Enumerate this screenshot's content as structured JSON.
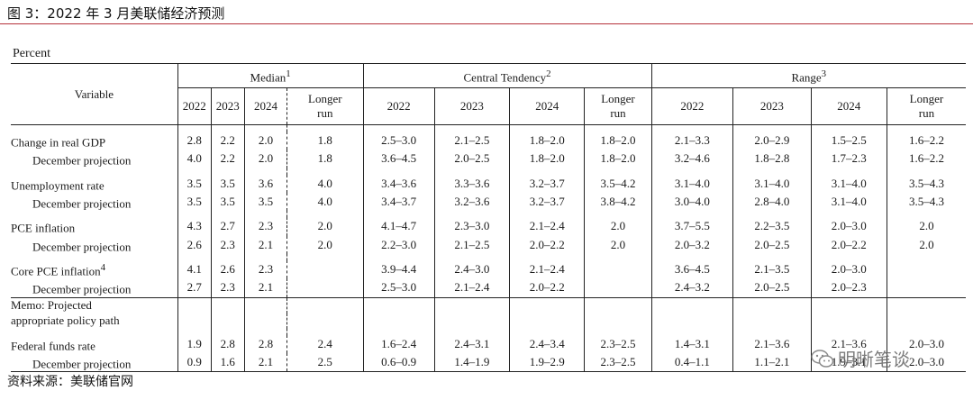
{
  "figure": {
    "title": "图 3：2022 年 3 月美联储经济预测",
    "source": "资料来源：美联储官网",
    "watermark": "明晰笔谈"
  },
  "table": {
    "unit": "Percent",
    "variable_header": "Variable",
    "groups": {
      "median": {
        "label": "Median",
        "sup": "1"
      },
      "central": {
        "label": "Central Tendency",
        "sup": "2"
      },
      "range": {
        "label": "Range",
        "sup": "3"
      }
    },
    "years": {
      "y2022": "2022",
      "y2023": "2023",
      "y2024": "2024",
      "longer_1": "Longer",
      "longer_2": "run"
    },
    "rows": [
      {
        "label": "Change in real GDP",
        "sup": "",
        "m": [
          "2.8",
          "2.2",
          "2.0",
          "1.8"
        ],
        "ct": [
          "2.5–3.0",
          "2.1–2.5",
          "1.8–2.0",
          "1.8–2.0"
        ],
        "rg": [
          "2.1–3.3",
          "2.0–2.9",
          "1.5–2.5",
          "1.6–2.2"
        ]
      },
      {
        "label": "December projection",
        "sup": "",
        "m": [
          "4.0",
          "2.2",
          "2.0",
          "1.8"
        ],
        "ct": [
          "3.6–4.5",
          "2.0–2.5",
          "1.8–2.0",
          "1.8–2.0"
        ],
        "rg": [
          "3.2–4.6",
          "1.8–2.8",
          "1.7–2.3",
          "1.6–2.2"
        ]
      },
      {
        "label": "Unemployment rate",
        "sup": "",
        "m": [
          "3.5",
          "3.5",
          "3.6",
          "4.0"
        ],
        "ct": [
          "3.4–3.6",
          "3.3–3.6",
          "3.2–3.7",
          "3.5–4.2"
        ],
        "rg": [
          "3.1–4.0",
          "3.1–4.0",
          "3.1–4.0",
          "3.5–4.3"
        ]
      },
      {
        "label": "December projection",
        "sup": "",
        "m": [
          "3.5",
          "3.5",
          "3.5",
          "4.0"
        ],
        "ct": [
          "3.4–3.7",
          "3.2–3.6",
          "3.2–3.7",
          "3.8–4.2"
        ],
        "rg": [
          "3.0–4.0",
          "2.8–4.0",
          "3.1–4.0",
          "3.5–4.3"
        ]
      },
      {
        "label": "PCE inflation",
        "sup": "",
        "m": [
          "4.3",
          "2.7",
          "2.3",
          "2.0"
        ],
        "ct": [
          "4.1–4.7",
          "2.3–3.0",
          "2.1–2.4",
          "2.0"
        ],
        "rg": [
          "3.7–5.5",
          "2.2–3.5",
          "2.0–3.0",
          "2.0"
        ]
      },
      {
        "label": "December projection",
        "sup": "",
        "m": [
          "2.6",
          "2.3",
          "2.1",
          "2.0"
        ],
        "ct": [
          "2.2–3.0",
          "2.1–2.5",
          "2.0–2.2",
          "2.0"
        ],
        "rg": [
          "2.0–3.2",
          "2.0–2.5",
          "2.0–2.2",
          "2.0"
        ]
      },
      {
        "label": "Core PCE inflation",
        "sup": "4",
        "m": [
          "4.1",
          "2.6",
          "2.3",
          ""
        ],
        "ct": [
          "3.9–4.4",
          "2.4–3.0",
          "2.1–2.4",
          ""
        ],
        "rg": [
          "3.6–4.5",
          "2.1–3.5",
          "2.0–3.0",
          ""
        ]
      },
      {
        "label": "December projection",
        "sup": "",
        "m": [
          "2.7",
          "2.3",
          "2.1",
          ""
        ],
        "ct": [
          "2.5–3.0",
          "2.1–2.4",
          "2.0–2.2",
          ""
        ],
        "rg": [
          "2.4–3.2",
          "2.0–2.5",
          "2.0–2.3",
          ""
        ]
      },
      {
        "label": "Federal funds rate",
        "sup": "",
        "m": [
          "1.9",
          "2.8",
          "2.8",
          "2.4"
        ],
        "ct": [
          "1.6–2.4",
          "2.4–3.1",
          "2.4–3.4",
          "2.3–2.5"
        ],
        "rg": [
          "1.4–3.1",
          "2.1–3.6",
          "2.1–3.6",
          "2.0–3.0"
        ]
      },
      {
        "label": "December projection",
        "sup": "",
        "m": [
          "0.9",
          "1.6",
          "2.1",
          "2.5"
        ],
        "ct": [
          "0.6–0.9",
          "1.4–1.9",
          "1.9–2.9",
          "2.3–2.5"
        ],
        "rg": [
          "0.4–1.1",
          "1.1–2.1",
          "1.9–3.1",
          "2.0–3.0"
        ]
      }
    ],
    "memo": {
      "line1": "Memo: Projected",
      "line2": "appropriate policy path"
    }
  },
  "colors": {
    "rule": "#b5323a",
    "text": "#1a1a1a"
  }
}
